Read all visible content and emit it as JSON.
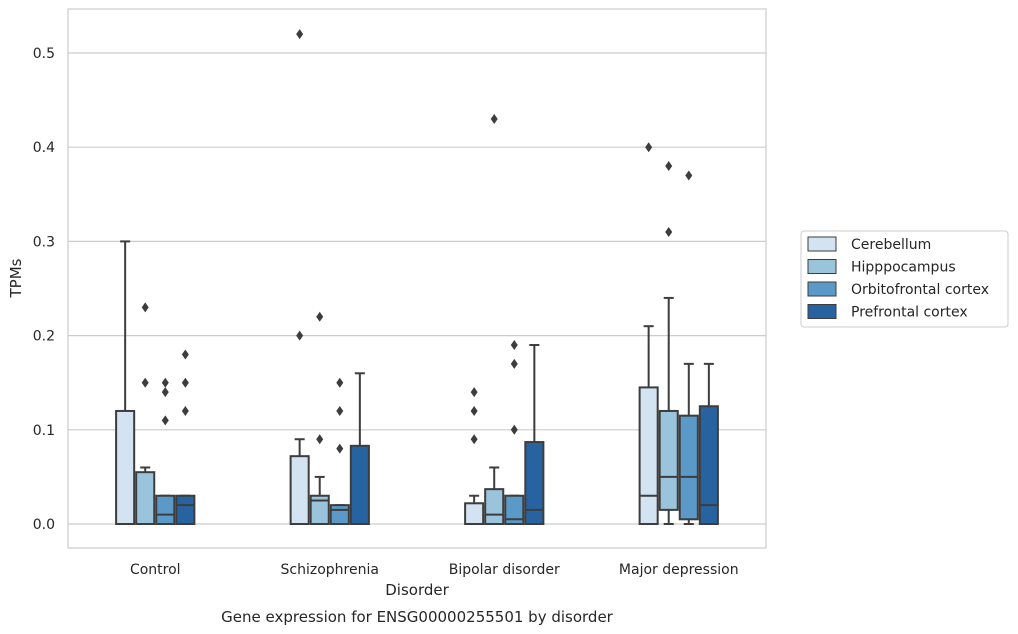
{
  "chart_data": {
    "type": "box",
    "caption": "Gene expression for ENSG00000255501 by disorder",
    "xlabel": "Disorder",
    "ylabel": "TPMs",
    "ylim": [
      -0.025,
      0.545
    ],
    "yticks": [
      "0.0",
      "0.1",
      "0.2",
      "0.3",
      "0.4",
      "0.5"
    ],
    "grid": "horizontal",
    "legend_position": "right",
    "categories": [
      "Control",
      "Schizophrenia",
      "Bipolar disorder",
      "Major depression"
    ],
    "series": [
      {
        "name": "Cerebellum",
        "color": "#d3e3f1",
        "boxes": [
          {
            "min": 0,
            "q1": 0,
            "median": 0,
            "q3": 0.12,
            "max": 0.3,
            "outliers": []
          },
          {
            "min": 0,
            "q1": 0,
            "median": 0,
            "q3": 0.072,
            "max": 0.09,
            "outliers": [
              0.2,
              0.52
            ]
          },
          {
            "min": 0,
            "q1": 0,
            "median": 0,
            "q3": 0.022,
            "max": 0.03,
            "outliers": [
              0.09,
              0.12,
              0.14
            ]
          },
          {
            "min": 0,
            "q1": 0,
            "median": 0.03,
            "q3": 0.145,
            "max": 0.21,
            "outliers": [
              0.4
            ]
          }
        ]
      },
      {
        "name": "Hipppocampus",
        "color": "#9ac3dc",
        "boxes": [
          {
            "min": 0,
            "q1": 0,
            "median": 0,
            "q3": 0.055,
            "max": 0.06,
            "outliers": [
              0.15,
              0.23
            ]
          },
          {
            "min": 0,
            "q1": 0,
            "median": 0.025,
            "q3": 0.03,
            "max": 0.05,
            "outliers": [
              0.09,
              0.22
            ]
          },
          {
            "min": 0,
            "q1": 0,
            "median": 0.01,
            "q3": 0.037,
            "max": 0.06,
            "outliers": [
              0.43
            ]
          },
          {
            "min": 0,
            "q1": 0.015,
            "median": 0.05,
            "q3": 0.12,
            "max": 0.24,
            "outliers": [
              0.31,
              0.38
            ]
          }
        ]
      },
      {
        "name": "Orbitofrontal cortex",
        "color": "#5b9ac8",
        "boxes": [
          {
            "min": 0,
            "q1": 0,
            "median": 0.01,
            "q3": 0.03,
            "max": 0.03,
            "outliers": [
              0.11,
              0.14,
              0.15
            ]
          },
          {
            "min": 0,
            "q1": 0,
            "median": 0.015,
            "q3": 0.02,
            "max": 0.02,
            "outliers": [
              0.08,
              0.12,
              0.15
            ]
          },
          {
            "min": 0,
            "q1": 0,
            "median": 0.005,
            "q3": 0.03,
            "max": 0.03,
            "outliers": [
              0.1,
              0.17,
              0.19
            ]
          },
          {
            "min": 0,
            "q1": 0.005,
            "median": 0.05,
            "q3": 0.115,
            "max": 0.17,
            "outliers": [
              0.37
            ]
          }
        ]
      },
      {
        "name": "Prefrontal cortex",
        "color": "#2763a1",
        "boxes": [
          {
            "min": 0,
            "q1": 0,
            "median": 0.02,
            "q3": 0.03,
            "max": 0.03,
            "outliers": [
              0.12,
              0.15,
              0.18
            ]
          },
          {
            "min": 0,
            "q1": 0,
            "median": 0,
            "q3": 0.083,
            "max": 0.16,
            "outliers": []
          },
          {
            "min": 0,
            "q1": 0,
            "median": 0.015,
            "q3": 0.087,
            "max": 0.19,
            "outliers": []
          },
          {
            "min": 0,
            "q1": 0,
            "median": 0.02,
            "q3": 0.125,
            "max": 0.17,
            "outliers": []
          }
        ]
      }
    ]
  }
}
